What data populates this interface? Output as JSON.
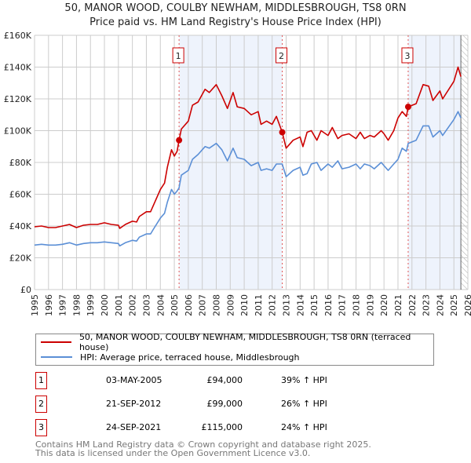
{
  "title": "50, MANOR WOOD, COULBY NEWHAM, MIDDLESBROUGH, TS8 0RN",
  "subtitle": "Price paid vs. HM Land Registry's House Price Index (HPI)",
  "legend": [
    {
      "label": "50, MANOR WOOD, COULBY NEWHAM, MIDDLESBROUGH, TS8 0RN (terraced house)",
      "color": "#cc0000"
    },
    {
      "label": "HPI: Average price, terraced house, Middlesbrough",
      "color": "#5b8fd6"
    }
  ],
  "sales": [
    {
      "num": "1",
      "date": "03-MAY-2005",
      "price": "£94,000",
      "hpi": "39% ↑ HPI",
      "t": 2005.34,
      "value": 94
    },
    {
      "num": "2",
      "date": "21-SEP-2012",
      "price": "£99,000",
      "hpi": "26% ↑ HPI",
      "t": 2012.72,
      "value": 99
    },
    {
      "num": "3",
      "date": "24-SEP-2021",
      "price": "£115,000",
      "hpi": "24% ↑ HPI",
      "t": 2021.73,
      "value": 115
    }
  ],
  "footer": [
    "Contains HM Land Registry data © Crown copyright and database right 2025.",
    "This data is licensed under the Open Government Licence v3.0."
  ],
  "chart_data": {
    "type": "line",
    "title": "50, MANOR WOOD, COULBY NEWHAM, MIDDLESBROUGH, TS8 0RN",
    "xlim": [
      1995,
      2026
    ],
    "ylim": [
      0,
      160
    ],
    "yunit": "£K",
    "yticks": [
      "£0",
      "£20K",
      "£40K",
      "£60K",
      "£80K",
      "£100K",
      "£120K",
      "£140K",
      "£160K"
    ],
    "xticks": [
      "1995",
      "1996",
      "1997",
      "1998",
      "1999",
      "2000",
      "2001",
      "2002",
      "2003",
      "2004",
      "2005",
      "2006",
      "2007",
      "2008",
      "2009",
      "2010",
      "2011",
      "2012",
      "2013",
      "2014",
      "2015",
      "2016",
      "2017",
      "2018",
      "2019",
      "2020",
      "2021",
      "2022",
      "2023",
      "2024",
      "2025",
      "2026"
    ],
    "grid": true,
    "shaded_periods": [
      [
        2005.34,
        2012.72
      ],
      [
        2021.73,
        2025.5
      ]
    ],
    "hatched_from": 2025.5,
    "x": [
      1995,
      1995.5,
      1996,
      1996.5,
      1997,
      1997.5,
      1998,
      1998.5,
      1999,
      1999.5,
      2000,
      2000.5,
      2001,
      2001.1,
      2001.5,
      2002,
      2002.3,
      2002.5,
      2003,
      2003.3,
      2003.5,
      2004,
      2004.3,
      2004.5,
      2004.8,
      2005,
      2005.2,
      2005.34,
      2005.5,
      2006,
      2006.3,
      2006.7,
      2007.2,
      2007.5,
      2008,
      2008.4,
      2008.8,
      2009.2,
      2009.5,
      2010,
      2010.5,
      2011,
      2011.2,
      2011.6,
      2012,
      2012.3,
      2012.72,
      2013,
      2013.5,
      2014,
      2014.2,
      2014.5,
      2014.8,
      2015.2,
      2015.5,
      2016,
      2016.3,
      2016.7,
      2017,
      2017.5,
      2018,
      2018.3,
      2018.6,
      2019,
      2019.3,
      2019.8,
      2020,
      2020.3,
      2020.7,
      2021,
      2021.3,
      2021.6,
      2021.73,
      2022.3,
      2022.8,
      2023.2,
      2023.5,
      2024,
      2024.2,
      2025,
      2025.3,
      2025.5
    ],
    "series": [
      {
        "name": "50, MANOR WOOD, COULBY NEWHAM, MIDDLESBROUGH, TS8 0RN (terraced house)",
        "color": "#cc0000",
        "values": [
          39.5,
          40,
          39,
          39,
          40,
          41,
          39,
          40.5,
          41,
          41,
          42,
          41,
          40.5,
          38.5,
          41,
          43,
          42.5,
          46,
          49,
          49,
          53,
          63,
          67,
          77,
          88,
          84,
          87,
          94,
          101,
          106,
          116,
          118,
          126,
          124,
          129,
          122,
          114,
          124,
          115,
          114,
          110,
          112,
          104,
          106,
          104,
          109,
          99,
          89,
          94,
          96,
          90,
          99,
          100,
          94,
          100,
          97,
          102,
          95,
          97,
          98,
          95,
          99,
          95,
          97,
          96,
          100,
          98,
          94,
          100,
          108,
          112,
          109,
          115,
          117,
          129,
          128,
          119,
          125,
          120,
          131,
          140,
          134
        ]
      },
      {
        "name": "HPI: Average price, terraced house, Middlesbrough",
        "color": "#5b8fd6",
        "values": [
          28,
          28.5,
          28,
          28,
          28.5,
          29.5,
          28,
          29,
          29.5,
          29.5,
          30,
          29.5,
          29,
          27.5,
          29.5,
          31,
          30.5,
          33,
          35,
          35,
          38,
          45,
          48,
          55,
          63,
          60,
          62,
          64,
          72,
          75,
          82,
          85,
          90,
          89,
          92,
          88,
          81,
          89,
          83,
          82,
          78,
          80,
          75,
          76,
          75,
          79,
          79,
          71,
          75,
          77,
          72,
          73,
          79,
          80,
          75,
          79,
          77,
          81,
          76,
          77,
          79,
          76,
          79,
          78,
          76,
          80,
          78,
          75,
          79,
          82,
          89,
          87,
          92,
          94,
          103,
          103,
          96,
          100,
          97,
          107,
          112,
          108
        ]
      }
    ]
  }
}
